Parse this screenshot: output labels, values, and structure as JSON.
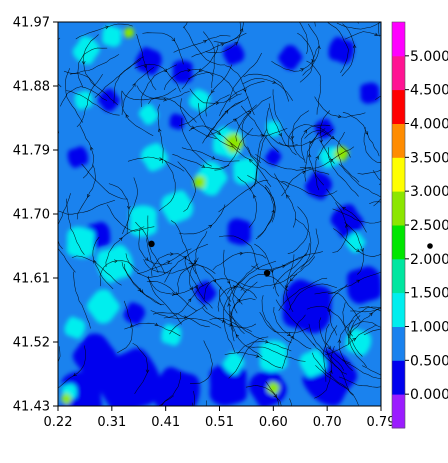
{
  "chart_data": {
    "type": "heatmap",
    "title": "",
    "xlabel": "",
    "ylabel": "",
    "xlim": [
      0.22,
      0.79
    ],
    "ylim": [
      41.43,
      41.97
    ],
    "x_ticks": [
      "0.22",
      "0.31",
      "0.41",
      "0.51",
      "0.60",
      "0.70",
      "0.79"
    ],
    "y_ticks": [
      "41.97",
      "41.88",
      "41.79",
      "41.70",
      "41.61",
      "41.52",
      "41.43"
    ],
    "colorbar": {
      "levels": [
        "0.000",
        "0.500",
        "1.000",
        "1.500",
        "2.000",
        "2.500",
        "3.000",
        "3.500",
        "4.000",
        "4.500",
        "5.000"
      ],
      "colors": [
        "#9b1cff",
        "#0000ee",
        "#1a82ee",
        "#00eeee",
        "#00e6a0",
        "#00e600",
        "#8ce600",
        "#ffff00",
        "#ff8c00",
        "#ff0000",
        "#ff1493",
        "#ff00ff"
      ]
    },
    "background_color": "#1a82ee",
    "low_color": "#0000ee",
    "mid_color": "#00eeee",
    "high_color": "#8ce600",
    "streamline_color": "#000000",
    "markers": [
      {
        "x": 0.385,
        "y": 41.658
      },
      {
        "x": 0.589,
        "y": 41.617
      }
    ],
    "outside_marker": true,
    "regions": [
      {
        "level": "low",
        "x": 0.262,
        "y": 41.445,
        "r": 0.045
      },
      {
        "level": "low",
        "x": 0.345,
        "y": 41.465,
        "r": 0.06
      },
      {
        "level": "low",
        "x": 0.285,
        "y": 41.5,
        "r": 0.04
      },
      {
        "level": "low",
        "x": 0.43,
        "y": 41.45,
        "r": 0.045
      },
      {
        "level": "low",
        "x": 0.52,
        "y": 41.46,
        "r": 0.04
      },
      {
        "level": "low",
        "x": 0.59,
        "y": 41.455,
        "r": 0.035
      },
      {
        "level": "low",
        "x": 0.7,
        "y": 41.47,
        "r": 0.05
      },
      {
        "level": "low",
        "x": 0.66,
        "y": 41.57,
        "r": 0.05
      },
      {
        "level": "low",
        "x": 0.76,
        "y": 41.6,
        "r": 0.035
      },
      {
        "level": "low",
        "x": 0.73,
        "y": 41.69,
        "r": 0.03
      },
      {
        "level": "low",
        "x": 0.68,
        "y": 41.74,
        "r": 0.025
      },
      {
        "level": "low",
        "x": 0.54,
        "y": 41.675,
        "r": 0.025
      },
      {
        "level": "low",
        "x": 0.255,
        "y": 41.78,
        "r": 0.02
      },
      {
        "level": "low",
        "x": 0.31,
        "y": 41.86,
        "r": 0.02
      },
      {
        "level": "low",
        "x": 0.38,
        "y": 41.915,
        "r": 0.025
      },
      {
        "level": "low",
        "x": 0.44,
        "y": 41.9,
        "r": 0.022
      },
      {
        "level": "low",
        "x": 0.53,
        "y": 41.925,
        "r": 0.02
      },
      {
        "level": "low",
        "x": 0.63,
        "y": 41.92,
        "r": 0.022
      },
      {
        "level": "low",
        "x": 0.72,
        "y": 41.93,
        "r": 0.025
      },
      {
        "level": "low",
        "x": 0.77,
        "y": 41.87,
        "r": 0.02
      },
      {
        "level": "low",
        "x": 0.69,
        "y": 41.82,
        "r": 0.018
      },
      {
        "level": "low",
        "x": 0.6,
        "y": 41.78,
        "r": 0.015
      },
      {
        "level": "low",
        "x": 0.43,
        "y": 41.83,
        "r": 0.015
      },
      {
        "level": "low",
        "x": 0.29,
        "y": 41.67,
        "r": 0.025
      },
      {
        "level": "low",
        "x": 0.48,
        "y": 41.59,
        "r": 0.02
      },
      {
        "level": "low",
        "x": 0.355,
        "y": 41.56,
        "r": 0.02
      },
      {
        "level": "mid",
        "x": 0.26,
        "y": 41.66,
        "r": 0.03
      },
      {
        "level": "mid",
        "x": 0.32,
        "y": 41.63,
        "r": 0.035
      },
      {
        "level": "mid",
        "x": 0.3,
        "y": 41.57,
        "r": 0.03
      },
      {
        "level": "mid",
        "x": 0.25,
        "y": 41.54,
        "r": 0.02
      },
      {
        "level": "mid",
        "x": 0.37,
        "y": 41.69,
        "r": 0.03
      },
      {
        "level": "mid",
        "x": 0.43,
        "y": 41.71,
        "r": 0.03
      },
      {
        "level": "mid",
        "x": 0.49,
        "y": 41.75,
        "r": 0.03
      },
      {
        "level": "mid",
        "x": 0.52,
        "y": 41.8,
        "r": 0.03
      },
      {
        "level": "mid",
        "x": 0.55,
        "y": 41.76,
        "r": 0.025
      },
      {
        "level": "mid",
        "x": 0.39,
        "y": 41.78,
        "r": 0.025
      },
      {
        "level": "mid",
        "x": 0.27,
        "y": 41.93,
        "r": 0.025
      },
      {
        "level": "mid",
        "x": 0.315,
        "y": 41.95,
        "r": 0.02
      },
      {
        "level": "mid",
        "x": 0.265,
        "y": 41.86,
        "r": 0.018
      },
      {
        "level": "mid",
        "x": 0.38,
        "y": 41.84,
        "r": 0.018
      },
      {
        "level": "mid",
        "x": 0.47,
        "y": 41.86,
        "r": 0.02
      },
      {
        "level": "mid",
        "x": 0.6,
        "y": 41.82,
        "r": 0.015
      },
      {
        "level": "mid",
        "x": 0.7,
        "y": 41.78,
        "r": 0.02
      },
      {
        "level": "mid",
        "x": 0.745,
        "y": 41.66,
        "r": 0.018
      },
      {
        "level": "mid",
        "x": 0.75,
        "y": 41.52,
        "r": 0.025
      },
      {
        "level": "mid",
        "x": 0.6,
        "y": 41.5,
        "r": 0.03
      },
      {
        "level": "mid",
        "x": 0.67,
        "y": 41.49,
        "r": 0.025
      },
      {
        "level": "mid",
        "x": 0.53,
        "y": 41.49,
        "r": 0.02
      },
      {
        "level": "mid",
        "x": 0.42,
        "y": 41.53,
        "r": 0.02
      },
      {
        "level": "mid",
        "x": 0.24,
        "y": 41.45,
        "r": 0.015
      },
      {
        "level": "high",
        "x": 0.53,
        "y": 41.8,
        "r": 0.018
      },
      {
        "level": "high",
        "x": 0.72,
        "y": 41.785,
        "r": 0.014
      },
      {
        "level": "high",
        "x": 0.47,
        "y": 41.745,
        "r": 0.012
      },
      {
        "level": "high",
        "x": 0.345,
        "y": 41.955,
        "r": 0.01
      },
      {
        "level": "high",
        "x": 0.235,
        "y": 41.44,
        "r": 0.01
      },
      {
        "level": "high",
        "x": 0.6,
        "y": 41.455,
        "r": 0.012
      }
    ]
  }
}
